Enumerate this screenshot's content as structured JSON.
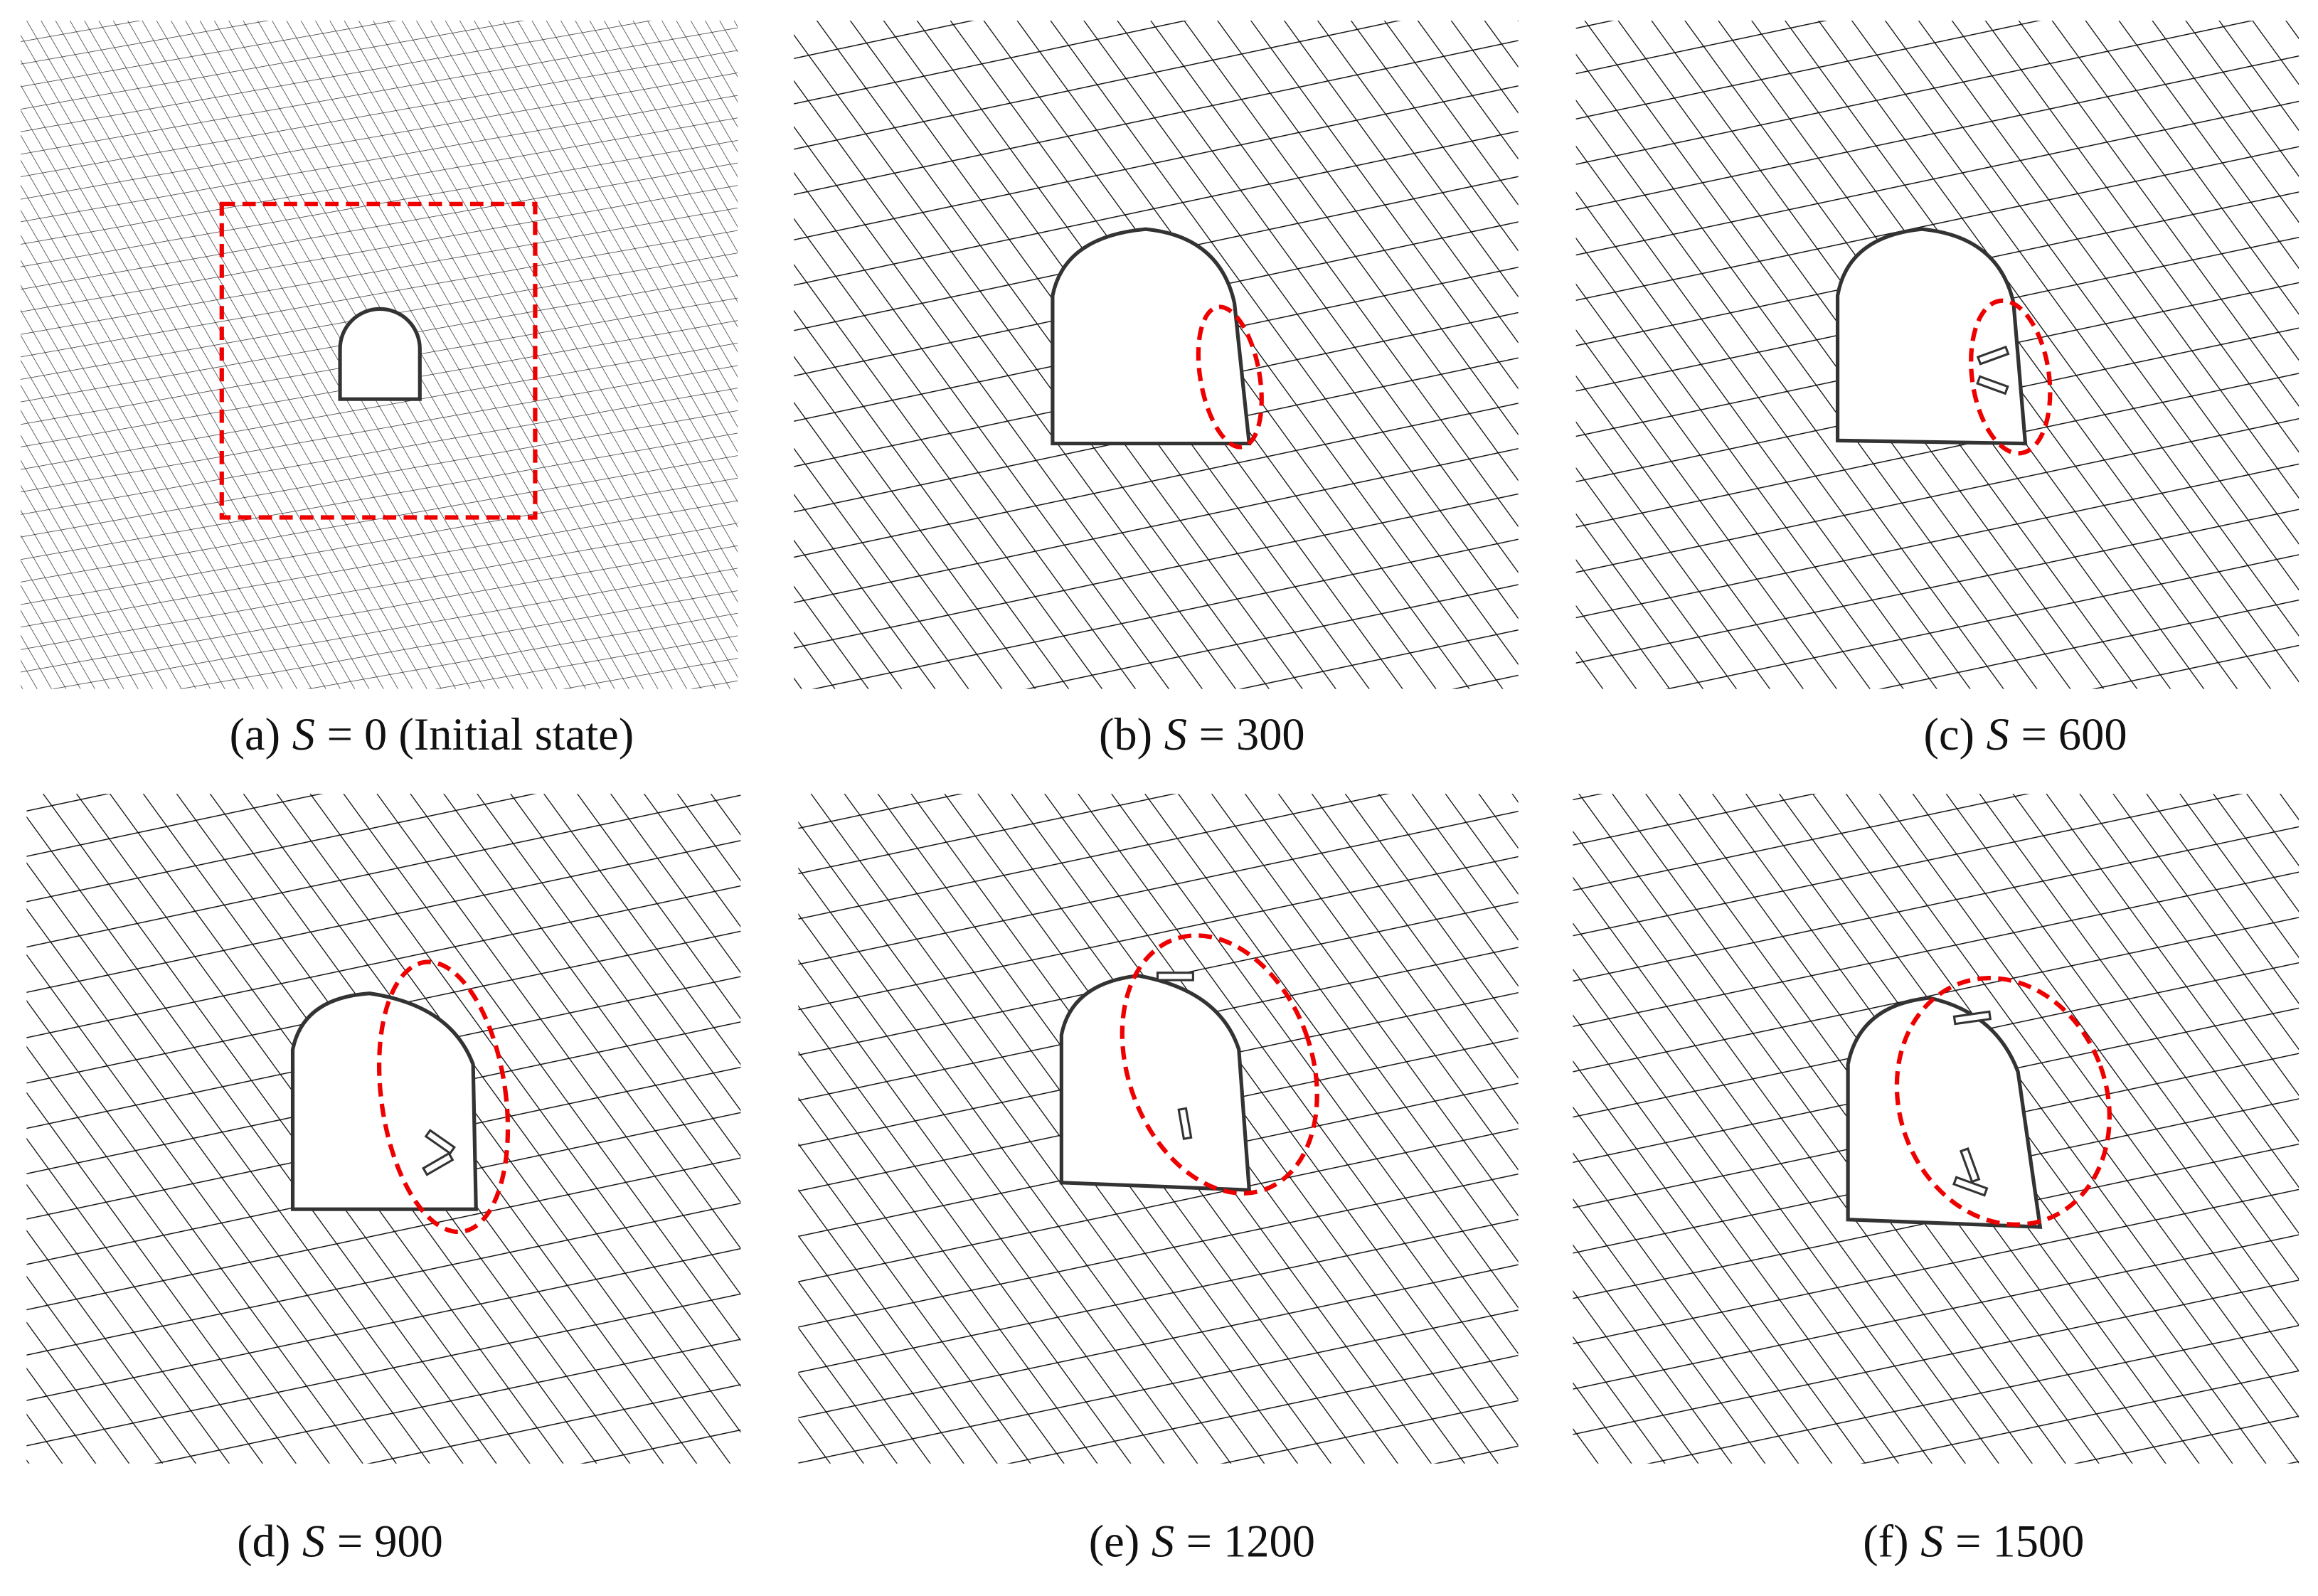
{
  "panels": [
    {
      "label": "(a)",
      "symbol": "S",
      "text": "= 0 (Initial state)"
    },
    {
      "label": "(b)",
      "symbol": "S",
      "text": "= 300"
    },
    {
      "label": "(c)",
      "symbol": "S",
      "text": "= 600"
    },
    {
      "label": "(d)",
      "symbol": "S",
      "text": "= 900"
    },
    {
      "label": "(e)",
      "symbol": "S",
      "text": "= 1200"
    },
    {
      "label": "(f)",
      "symbol": "S",
      "text": "= 1500"
    }
  ]
}
